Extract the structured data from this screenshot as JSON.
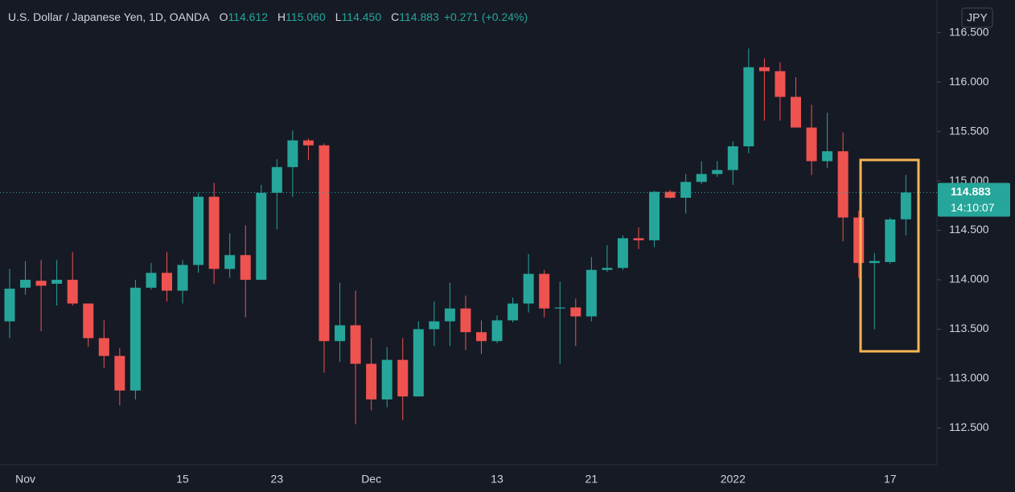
{
  "chart_data": {
    "type": "candlestick",
    "title": "U.S. Dollar / Japanese Yen, 1D, OANDA",
    "legend_items": [
      {
        "key": "O",
        "value": "114.612"
      },
      {
        "key": "H",
        "value": "115.060"
      },
      {
        "key": "L",
        "value": "114.450"
      },
      {
        "key": "C",
        "value": "114.883"
      }
    ],
    "change": "+0.271 (+0.24%)",
    "currency": "JPY",
    "categories": [
      null,
      "Nov",
      null,
      null,
      null,
      null,
      null,
      null,
      null,
      null,
      null,
      "15",
      null,
      null,
      null,
      null,
      null,
      "23",
      null,
      null,
      null,
      null,
      null,
      "Dec",
      null,
      null,
      null,
      null,
      null,
      null,
      null,
      "13",
      null,
      null,
      null,
      null,
      null,
      "21",
      null,
      null,
      null,
      null,
      null,
      null,
      null,
      null,
      "2022",
      null,
      null,
      null,
      null,
      null,
      null,
      null,
      null,
      null,
      "17",
      null
    ],
    "open": [
      113.58,
      113.92,
      113.99,
      113.96,
      114.0,
      113.76,
      113.41,
      113.23,
      112.88,
      113.92,
      114.07,
      113.89,
      114.15,
      114.84,
      114.11,
      114.25,
      114.0,
      114.88,
      115.14,
      115.41,
      115.36,
      113.38,
      113.54,
      113.15,
      112.79,
      113.19,
      112.82,
      113.5,
      113.58,
      113.71,
      113.47,
      113.38,
      113.59,
      113.76,
      114.06,
      113.71,
      113.72,
      113.63,
      114.1,
      114.12,
      114.42,
      114.4,
      114.89,
      114.83,
      114.99,
      115.07,
      115.11,
      115.35,
      116.15,
      116.11,
      115.85,
      115.54,
      115.2,
      115.3,
      114.63,
      114.17,
      114.18,
      114.612
    ],
    "high": [
      114.11,
      114.19,
      114.2,
      114.2,
      114.28,
      113.76,
      113.59,
      113.31,
      114.0,
      114.17,
      114.28,
      114.2,
      114.88,
      114.98,
      114.47,
      114.55,
      114.96,
      115.22,
      115.51,
      115.43,
      115.38,
      113.97,
      113.89,
      113.41,
      113.32,
      113.41,
      113.58,
      113.78,
      113.97,
      113.84,
      113.59,
      113.64,
      113.82,
      114.26,
      114.1,
      113.98,
      113.81,
      114.23,
      114.35,
      114.45,
      114.53,
      114.9,
      114.91,
      115.07,
      115.2,
      115.2,
      115.4,
      116.34,
      116.24,
      116.2,
      116.05,
      115.77,
      115.69,
      115.49,
      114.7,
      114.27,
      114.63,
      115.06
    ],
    "low": [
      113.41,
      113.85,
      113.48,
      113.74,
      113.74,
      113.32,
      113.11,
      112.73,
      112.79,
      113.9,
      113.78,
      113.76,
      114.07,
      113.96,
      114.02,
      113.62,
      114.0,
      114.51,
      114.84,
      115.21,
      113.06,
      113.17,
      112.54,
      112.68,
      112.71,
      112.58,
      112.82,
      113.33,
      113.33,
      113.29,
      113.25,
      113.36,
      113.57,
      113.67,
      113.62,
      113.15,
      113.33,
      113.58,
      114.08,
      114.1,
      114.31,
      114.33,
      114.82,
      114.67,
      114.97,
      115.04,
      114.96,
      115.28,
      115.61,
      115.61,
      115.54,
      115.06,
      115.13,
      114.39,
      114.02,
      113.5,
      114.16,
      114.45
    ],
    "close": [
      113.91,
      114.0,
      113.94,
      114.0,
      113.76,
      113.41,
      113.23,
      112.88,
      113.92,
      114.07,
      113.89,
      114.15,
      114.84,
      114.11,
      114.25,
      114.0,
      114.88,
      115.14,
      115.41,
      115.36,
      113.38,
      113.54,
      113.15,
      112.79,
      113.19,
      112.82,
      113.5,
      113.58,
      113.71,
      113.47,
      113.38,
      113.59,
      113.76,
      114.06,
      113.71,
      113.72,
      113.63,
      114.1,
      114.12,
      114.42,
      114.4,
      114.89,
      114.83,
      114.99,
      115.07,
      115.11,
      115.35,
      116.15,
      116.11,
      115.85,
      115.54,
      115.2,
      115.3,
      114.63,
      114.17,
      114.19,
      114.61,
      114.883
    ],
    "up_color": "#26a69a",
    "down_color": "#ef5350",
    "ylim": [
      112.13,
      116.83
    ],
    "yticks": [
      {
        "value": 112.5,
        "label": "112.500"
      },
      {
        "value": 113,
        "label": "113.000"
      },
      {
        "value": 113.5,
        "label": "113.500"
      },
      {
        "value": 114,
        "label": "114.000"
      },
      {
        "value": 114.5,
        "label": "114.500"
      },
      {
        "value": 115,
        "label": "115.000"
      },
      {
        "value": 115.5,
        "label": "115.500"
      },
      {
        "value": 116,
        "label": "116.000"
      },
      {
        "value": 116.5,
        "label": "116.500"
      }
    ],
    "last_price": {
      "value": 114.883,
      "label": "114.883"
    },
    "countdown": "14:10:07",
    "grid": false
  }
}
